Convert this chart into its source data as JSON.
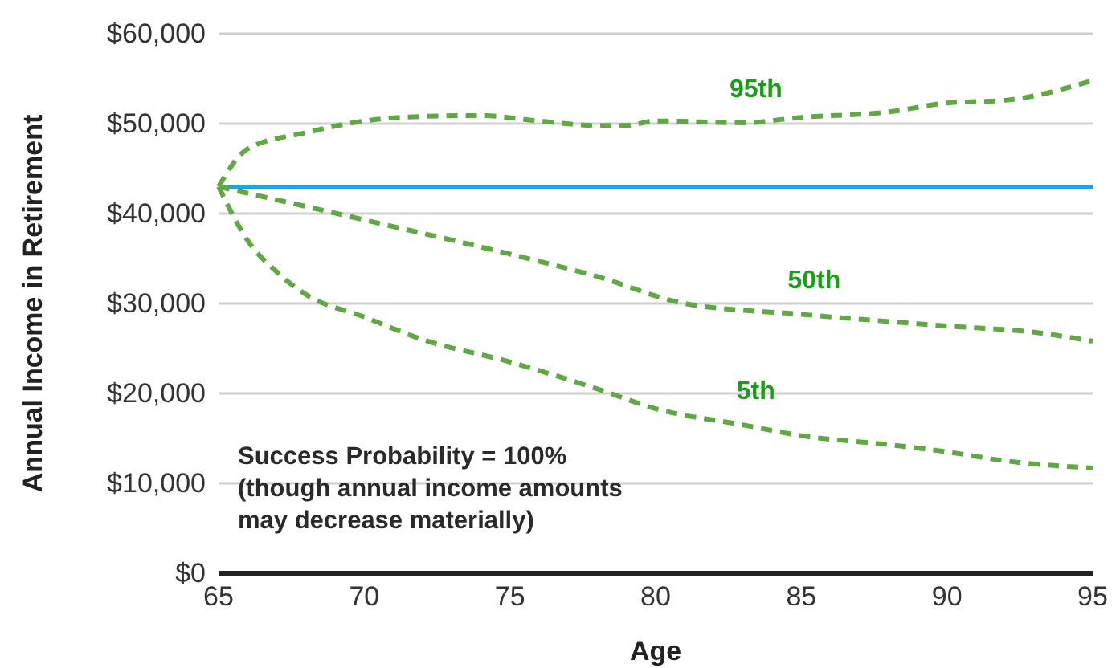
{
  "chart_data": {
    "type": "line",
    "xlabel": "Age",
    "ylabel": "Annual Income in Retirement",
    "xlim": [
      65,
      95
    ],
    "xticks": [
      65,
      70,
      75,
      80,
      85,
      90,
      95
    ],
    "ylim": [
      0,
      60000
    ],
    "yticks": [
      {
        "value": 0,
        "label": "$0"
      },
      {
        "value": 10000,
        "label": "$10,000"
      },
      {
        "value": 20000,
        "label": "$20,000"
      },
      {
        "value": 30000,
        "label": "$30,000"
      },
      {
        "value": 40000,
        "label": "$40,000"
      },
      {
        "value": 50000,
        "label": "$50,000"
      },
      {
        "value": 60000,
        "label": "$60,000"
      }
    ],
    "grid": "y",
    "legend": false,
    "marker": "none",
    "series": [
      {
        "color": "#1aa7dc",
        "line_style": "solid",
        "x": [
          65,
          95
        ],
        "values": [
          43000,
          43000
        ]
      },
      {
        "name": "95th",
        "color": "#5fa843",
        "line_style": "dashed",
        "x": [
          65,
          66,
          68,
          70,
          72,
          74,
          76,
          78,
          79,
          80,
          83,
          85,
          88,
          90,
          92,
          95
        ],
        "values": [
          43000,
          47200,
          49000,
          50300,
          50800,
          50900,
          50300,
          49800,
          49800,
          50300,
          50100,
          50700,
          51300,
          52300,
          52600,
          54800
        ]
      },
      {
        "name": "50th",
        "color": "#5fa843",
        "line_style": "dashed",
        "x": [
          65,
          70,
          75,
          78,
          81,
          85,
          90,
          93,
          95
        ],
        "values": [
          43000,
          39300,
          35500,
          33000,
          30000,
          28800,
          27500,
          26800,
          25800
        ]
      },
      {
        "name": "5th",
        "color": "#5fa843",
        "line_style": "dashed",
        "x": [
          65,
          66,
          67,
          68,
          70,
          72,
          75,
          78,
          80,
          83,
          85,
          88,
          90,
          92,
          95
        ],
        "values": [
          43000,
          37000,
          33500,
          31000,
          28500,
          26000,
          23500,
          20500,
          18300,
          16500,
          15300,
          14300,
          13500,
          12500,
          11700
        ]
      }
    ],
    "annotations": [
      "Success Probability = 100%\n(though annual income amounts\nmay decrease materially)"
    ]
  }
}
